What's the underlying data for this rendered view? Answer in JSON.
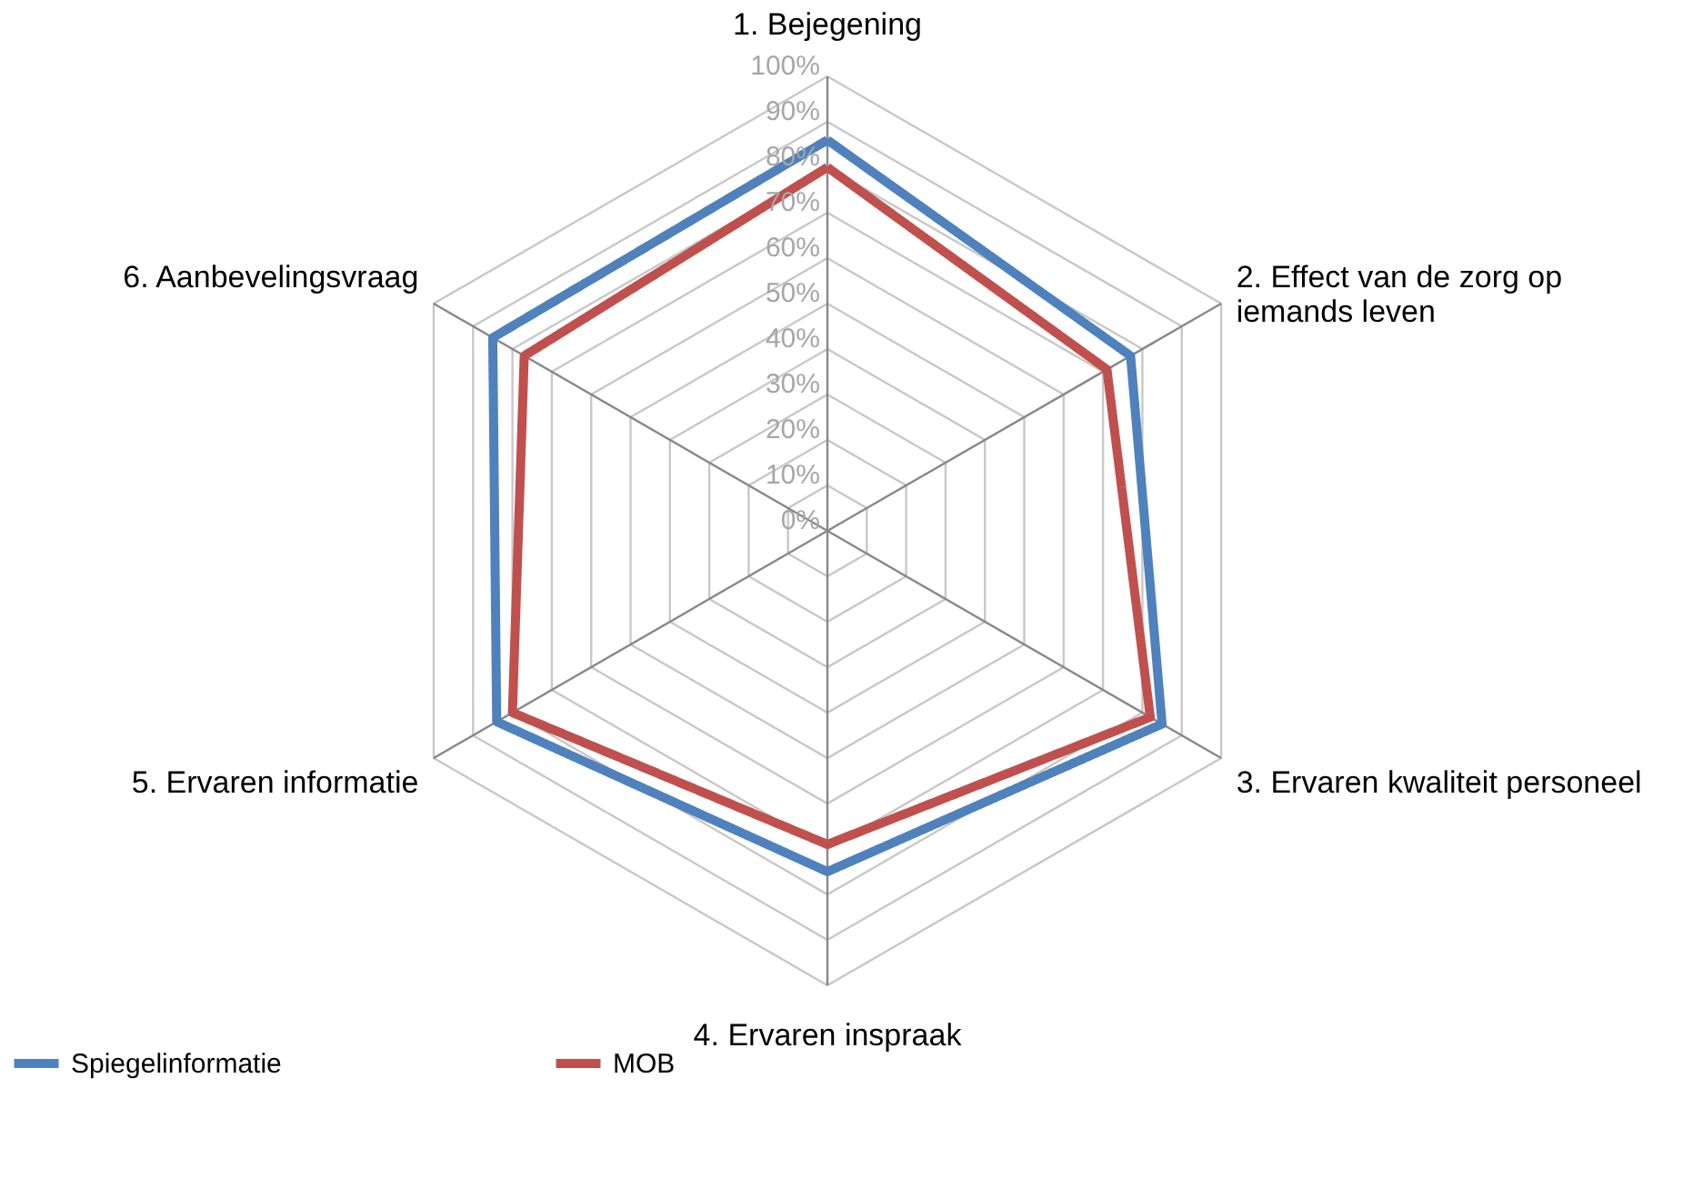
{
  "chart_data": {
    "type": "radar",
    "categories": [
      "1. Bejegening",
      "2. Effect van de zorg op\niemands leven",
      "3. Ervaren kwaliteit personeel",
      "4. Ervaren inspraak",
      "5. Ervaren informatie",
      "6. Aanbevelingsvraag"
    ],
    "series": [
      {
        "name": "Spiegelinformatie",
        "color": "#4f81bd",
        "values": [
          86,
          77,
          85,
          75,
          84,
          85
        ]
      },
      {
        "name": "MOB",
        "color": "#c0504d",
        "values": [
          80,
          71,
          82,
          69,
          80,
          77
        ]
      }
    ],
    "ylim": [
      0,
      100
    ],
    "yticks": [
      {
        "value": 0,
        "label": "0%"
      },
      {
        "value": 10,
        "label": "10%"
      },
      {
        "value": 20,
        "label": "20%"
      },
      {
        "value": 30,
        "label": "30%"
      },
      {
        "value": 40,
        "label": "40%"
      },
      {
        "value": 50,
        "label": "50%"
      },
      {
        "value": 60,
        "label": "60%"
      },
      {
        "value": 70,
        "label": "70%"
      },
      {
        "value": 80,
        "label": "80%"
      },
      {
        "value": 90,
        "label": "90%"
      },
      {
        "value": 100,
        "label": "100%"
      }
    ],
    "grid": true,
    "legend": "bottom",
    "line_style": "solid"
  }
}
